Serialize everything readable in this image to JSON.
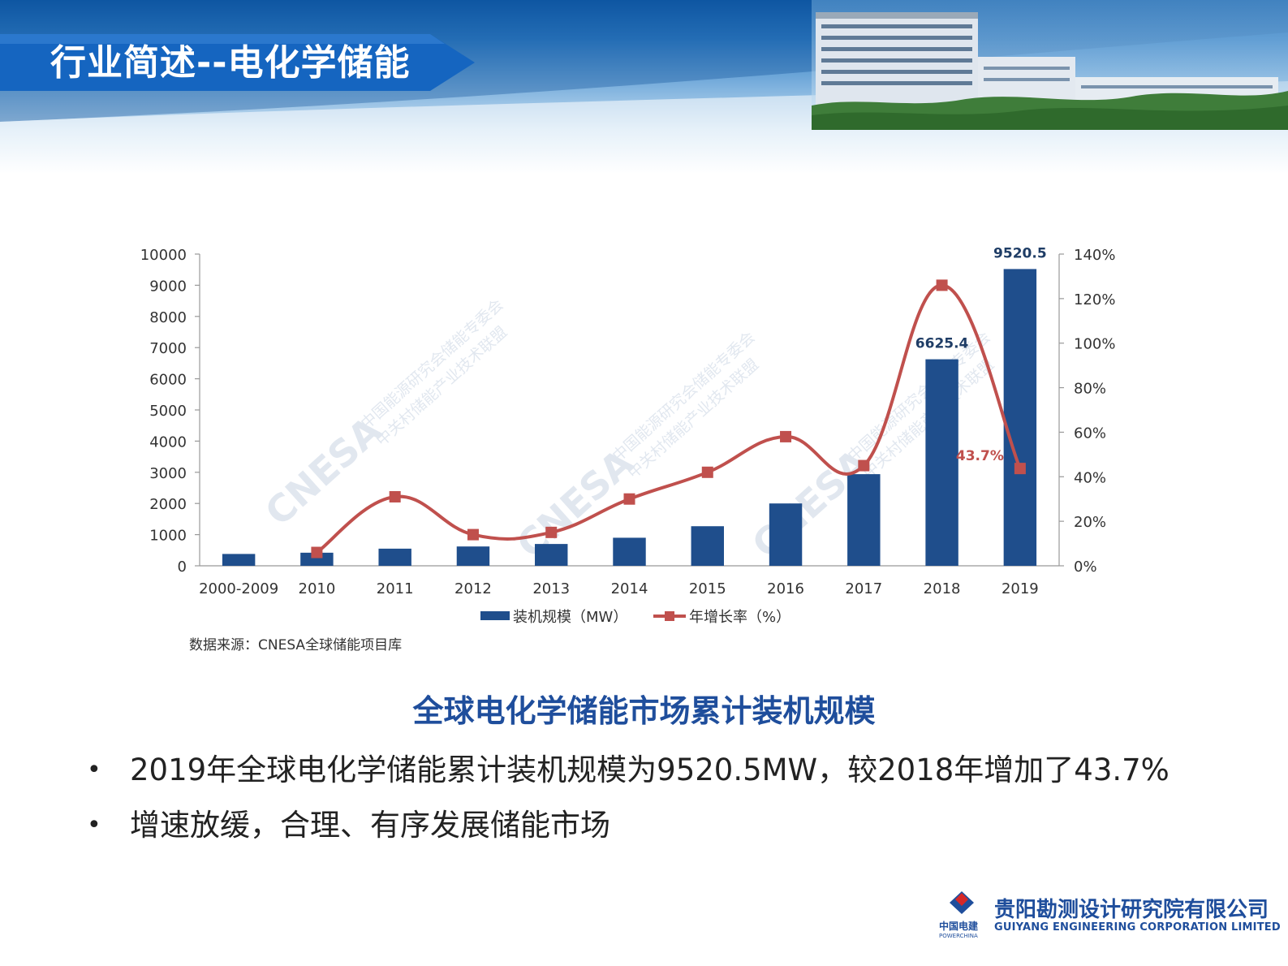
{
  "slide": {
    "title": "行业简述--电化学储能",
    "chart_heading": "全球电化学储能市场累计装机规模",
    "bullets": [
      "2019年全球电化学储能累计装机规模为9520.5MW，较2018年增加了43.7%",
      "增速放缓，合理、有序发展储能市场"
    ],
    "bullet_symbol": "•",
    "company_cn": "贵阳勘测设计研究院有限公司",
    "company_en": "GUIYANG ENGINEERING CORPORATION LIMITED",
    "brand_cn": "中国电建",
    "brand_en": "POWERCHINA",
    "colors": {
      "title_blue": "#1565c0",
      "heading_blue": "#1f4e9c",
      "bar": "#1f4e8c",
      "line": "#c0504d"
    }
  },
  "chart_data": {
    "type": "bar",
    "categories": [
      "2000-2009",
      "2010",
      "2011",
      "2012",
      "2013",
      "2014",
      "2015",
      "2016",
      "2017",
      "2018",
      "2019"
    ],
    "series": [
      {
        "name": "装机规模（MW）",
        "type": "bar",
        "axis": "left",
        "values": [
          380,
          420,
          550,
          620,
          700,
          900,
          1270,
          2000,
          2940,
          6625.4,
          9520.5
        ]
      },
      {
        "name": "年增长率（%）",
        "type": "line",
        "axis": "right",
        "values": [
          null,
          6,
          31,
          14,
          15,
          30,
          42,
          58,
          45,
          126,
          43.7
        ]
      }
    ],
    "data_labels": [
      {
        "category": "2018",
        "series": "装机规模（MW）",
        "text": "6625.4"
      },
      {
        "category": "2019",
        "series": "装机规模（MW）",
        "text": "9520.5"
      },
      {
        "category": "2019",
        "series": "年增长率（%）",
        "text": "43.7%"
      }
    ],
    "ylim_left": [
      0,
      10000
    ],
    "left_ticks": [
      "0",
      "1000",
      "2000",
      "3000",
      "4000",
      "5000",
      "6000",
      "7000",
      "8000",
      "9000",
      "10000"
    ],
    "ylim_right": [
      0,
      140
    ],
    "right_ticks": [
      "0%",
      "20%",
      "40%",
      "60%",
      "80%",
      "100%",
      "120%",
      "140%"
    ],
    "legend": {
      "position": "bottom",
      "entries": [
        "装机规模（MW）",
        "年增长率（%）"
      ]
    },
    "source_note": "数据来源：CNESA全球储能项目库",
    "watermark": {
      "main": "CNESA",
      "line1": "中国能源研究会储能专委会",
      "line2": "中关村储能产业技术联盟"
    },
    "grid": false
  }
}
